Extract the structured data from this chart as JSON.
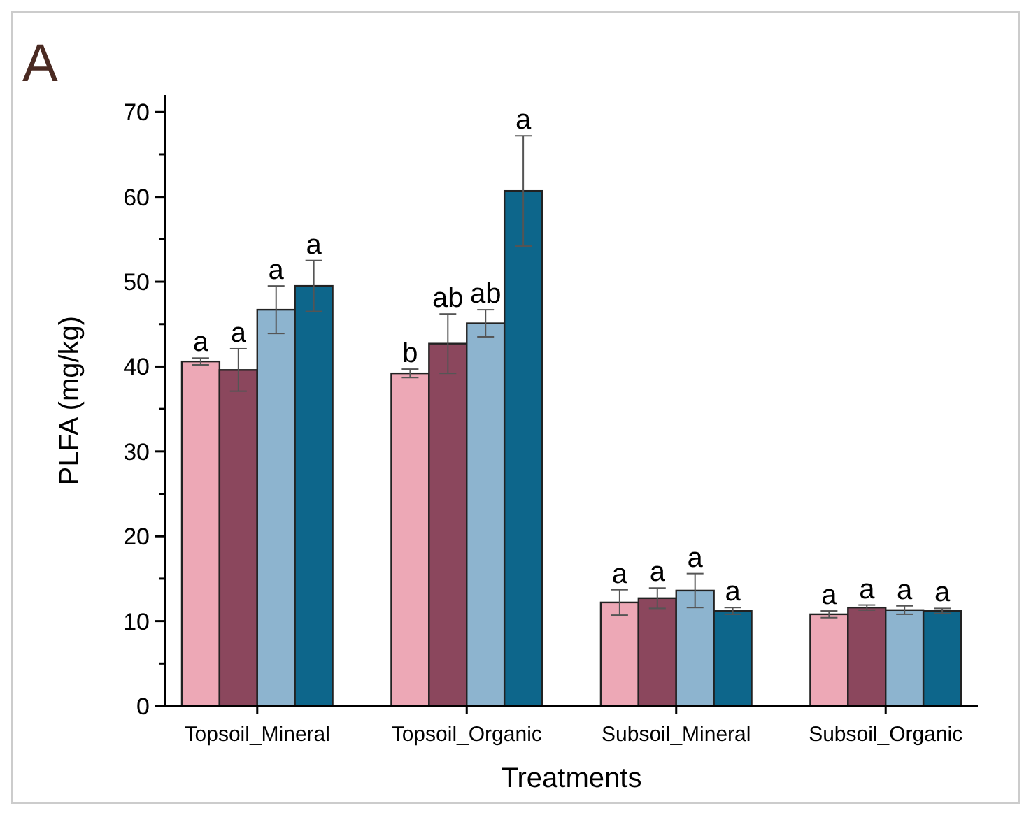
{
  "chart_data": {
    "type": "bar",
    "xlabel": "Treatments",
    "ylabel": "PLFA (mg/kg)",
    "annotations": [
      "A"
    ],
    "categories": [
      "Topsoil_Mineral",
      "Topsoil_Organic",
      "Subsoil_Mineral",
      "Subsoil_Organic"
    ],
    "ylim": [
      0,
      72
    ],
    "yticks": [
      0,
      {
        "value": 5,
        "label": null
      },
      10,
      {
        "value": 15,
        "label": null
      },
      20,
      {
        "value": 25,
        "label": null
      },
      30,
      {
        "value": 35,
        "label": null
      },
      40,
      {
        "value": 45,
        "label": null
      },
      50,
      {
        "value": 55,
        "label": null
      },
      60,
      {
        "value": 65,
        "label": null
      },
      70
    ],
    "grid": false,
    "series": [
      {
        "color": "#eda8b6",
        "values": [
          40.6,
          39.2,
          12.2,
          10.8
        ],
        "errors": [
          0.4,
          0.5,
          1.5,
          0.4
        ],
        "value_labels": [
          "a",
          "b",
          "a",
          "a"
        ]
      },
      {
        "color": "#8b475d",
        "values": [
          39.6,
          42.7,
          12.7,
          11.6
        ],
        "errors": [
          2.5,
          3.5,
          1.2,
          0.3
        ],
        "value_labels": [
          "a",
          "ab",
          "a",
          "a"
        ]
      },
      {
        "color": "#8db4cf",
        "values": [
          46.7,
          45.1,
          13.6,
          11.3
        ],
        "errors": [
          2.8,
          1.6,
          2.0,
          0.5
        ],
        "value_labels": [
          "a",
          "ab",
          "a",
          "a"
        ]
      },
      {
        "color": "#0d668b",
        "values": [
          49.5,
          60.7,
          11.2,
          11.2
        ],
        "errors": [
          3.0,
          6.5,
          0.4,
          0.3
        ],
        "value_labels": [
          "a",
          "a",
          "a",
          "a"
        ]
      }
    ]
  }
}
